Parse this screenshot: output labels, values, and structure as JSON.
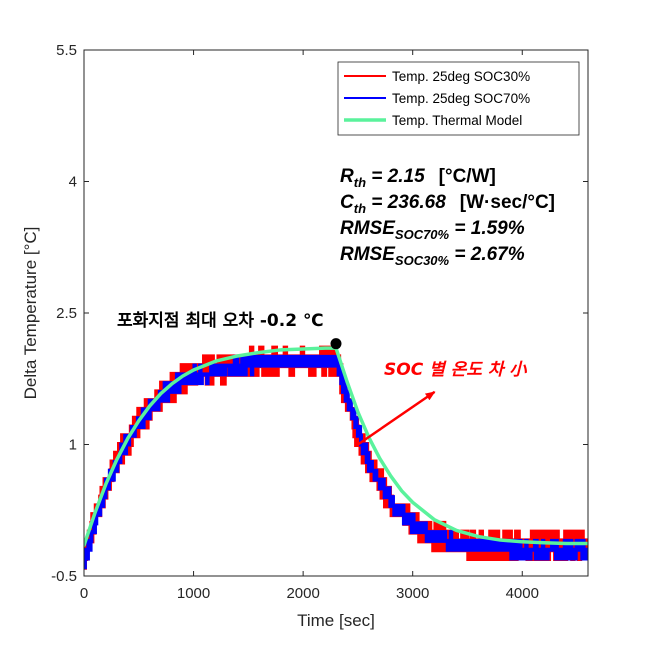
{
  "chart_data": {
    "type": "line",
    "xlabel": "Time [sec]",
    "ylabel": "Delta Temperature [°C]",
    "xlim": [
      0,
      4600
    ],
    "ylim": [
      -0.5,
      5.5
    ],
    "xticks": [
      0,
      1000,
      2000,
      3000,
      4000
    ],
    "xtick_labels": [
      "0",
      "1000",
      "2000",
      "3000",
      "4000"
    ],
    "yticks": [
      -0.5,
      1,
      2.5,
      4,
      5.5
    ],
    "ytick_labels": [
      "-0.5",
      "1",
      "2.5",
      "4",
      "5.5"
    ],
    "grid": false,
    "legend_position": "top-right",
    "series": [
      {
        "name": "Temp. 25deg SOC30%",
        "color": "#ff0000",
        "style": "noisy-quantized",
        "x": [
          0,
          100,
          200,
          300,
          400,
          500,
          600,
          700,
          800,
          900,
          1000,
          1200,
          1400,
          1600,
          1800,
          2000,
          2200,
          2300,
          2400,
          2500,
          2600,
          2700,
          2800,
          2900,
          3000,
          3200,
          3400,
          3600,
          3800,
          4000,
          4200,
          4400,
          4600
        ],
        "y": [
          -0.3,
          0.15,
          0.5,
          0.8,
          1.05,
          1.25,
          1.4,
          1.55,
          1.65,
          1.75,
          1.8,
          1.85,
          1.9,
          1.95,
          1.95,
          1.95,
          1.95,
          1.95,
          1.5,
          1.1,
          0.8,
          0.55,
          0.35,
          0.2,
          0.1,
          -0.05,
          -0.1,
          -0.15,
          -0.15,
          -0.15,
          -0.15,
          -0.15,
          -0.15
        ]
      },
      {
        "name": "Temp. 25deg SOC70%",
        "color": "#0000ff",
        "style": "noisy-quantized",
        "x": [
          0,
          100,
          200,
          300,
          400,
          500,
          600,
          700,
          800,
          900,
          1000,
          1200,
          1400,
          1600,
          1800,
          2000,
          2200,
          2300,
          2400,
          2500,
          2600,
          2700,
          2800,
          2900,
          3000,
          3200,
          3400,
          3600,
          3800,
          4000,
          4200,
          4400,
          4600
        ],
        "y": [
          -0.35,
          0.1,
          0.48,
          0.8,
          1.05,
          1.25,
          1.4,
          1.55,
          1.65,
          1.72,
          1.78,
          1.85,
          1.9,
          1.93,
          1.95,
          1.95,
          1.95,
          1.96,
          1.55,
          1.15,
          0.82,
          0.56,
          0.36,
          0.2,
          0.1,
          -0.05,
          -0.12,
          -0.15,
          -0.18,
          -0.2,
          -0.2,
          -0.2,
          -0.2
        ]
      },
      {
        "name": "Temp. Thermal Model",
        "color": "#5af29c",
        "style": "smooth",
        "x": [
          0,
          100,
          200,
          300,
          400,
          500,
          600,
          700,
          800,
          900,
          1000,
          1200,
          1400,
          1600,
          1800,
          2000,
          2200,
          2300,
          2400,
          2500,
          2600,
          2700,
          2800,
          2900,
          3000,
          3200,
          3400,
          3600,
          3800,
          4000,
          4200,
          4400,
          4600
        ],
        "y": [
          -0.15,
          0.22,
          0.55,
          0.83,
          1.07,
          1.27,
          1.44,
          1.58,
          1.69,
          1.78,
          1.85,
          1.95,
          2.01,
          2.05,
          2.08,
          2.09,
          2.1,
          2.1,
          1.72,
          1.37,
          1.08,
          0.84,
          0.64,
          0.47,
          0.34,
          0.14,
          0.02,
          -0.05,
          -0.09,
          -0.11,
          -0.12,
          -0.13,
          -0.13
        ]
      }
    ],
    "annotations": {
      "params": [
        {
          "main": "R",
          "sub": "th",
          "rest": " = 2.15",
          "unit": "[°C/W]"
        },
        {
          "main": "C",
          "sub": "th",
          "rest": " = 236.68",
          "unit": "[W·sec/°C]"
        },
        {
          "main": "RMSE",
          "sub": "SOC70%",
          "rest": " = 1.59%",
          "unit": ""
        },
        {
          "main": "RMSE",
          "sub": "SOC30%",
          "rest": " = 2.67%",
          "unit": ""
        }
      ],
      "saturation_text": "포화지점 최대 오차 -0.2 ℃",
      "saturation_point": {
        "x": 2300,
        "y": 2.15
      },
      "soc_text": "SOC 별 온도 차 小",
      "arrow": {
        "from": [
          2500,
          1.0
        ],
        "to": [
          3200,
          1.6
        ]
      }
    }
  }
}
